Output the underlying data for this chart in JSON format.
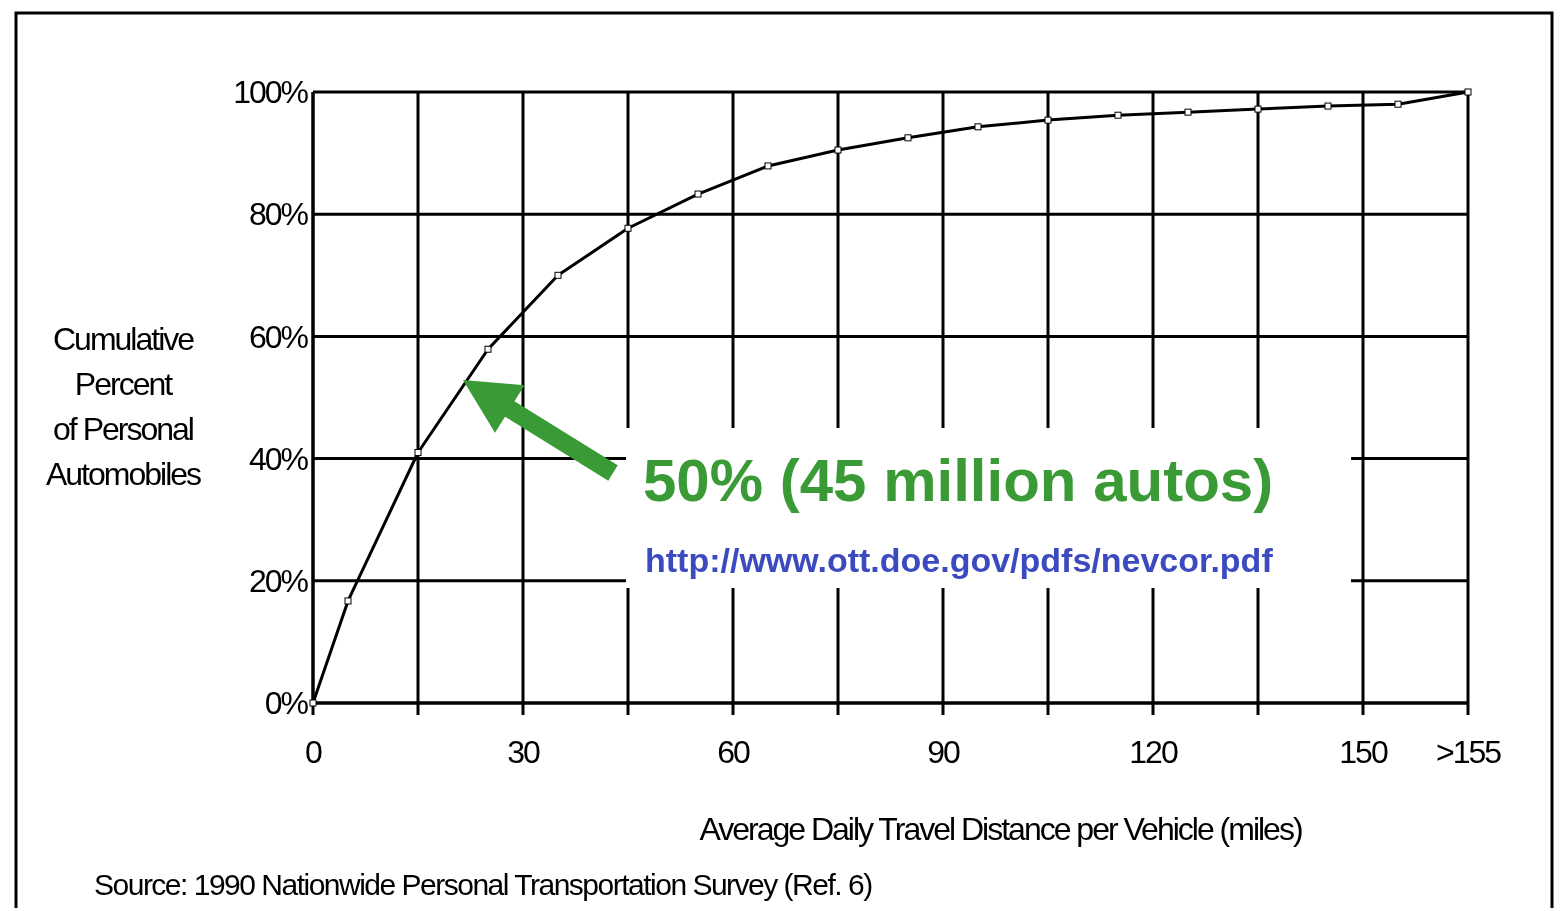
{
  "chart_data": {
    "type": "line",
    "xlabel": "Average Daily Travel Distance per Vehicle (miles)",
    "ylabel": "Cumulative\nPercent\nof Personal\nAutomobiles",
    "x": [
      0,
      5,
      15,
      25,
      35,
      45,
      55,
      65,
      75,
      85,
      95,
      105,
      115,
      125,
      135,
      145,
      155,
      165
    ],
    "series": [
      {
        "color": "#000000",
        "values": [
          0,
          16.7,
          41,
          57.9,
          70,
          77.7,
          83.3,
          87.9,
          90.5,
          92.5,
          94.3,
          95.4,
          96.2,
          96.7,
          97.2,
          97.7,
          98,
          100
        ]
      }
    ],
    "xlim": [
      0,
      165
    ],
    "xticks": [
      0,
      {
        "value": 15,
        "label": null
      },
      30,
      {
        "value": 45,
        "label": null
      },
      60,
      {
        "value": 75,
        "label": null
      },
      90,
      {
        "value": 105,
        "label": null
      },
      120,
      {
        "value": 135,
        "label": null
      },
      150,
      {
        "value": 165,
        "label": ">155"
      }
    ],
    "ylim": [
      0,
      100
    ],
    "yticks": [
      {
        "value": 0,
        "label": "0%"
      },
      {
        "value": 20,
        "label": "20%"
      },
      {
        "value": 40,
        "label": "40%"
      },
      {
        "value": 60,
        "label": "60%"
      },
      {
        "value": 80,
        "label": "80%"
      },
      {
        "value": 100,
        "label": "100%"
      }
    ],
    "grid": true,
    "marker": "square",
    "line_style": "solid",
    "annotations": [
      "50% (45 million autos)",
      "http://www.ott.doe.gov/pdfs/nevcor.pdf",
      "Source: 1990 Nationwide Personal Transportation Survey  (Ref. 6)"
    ]
  }
}
